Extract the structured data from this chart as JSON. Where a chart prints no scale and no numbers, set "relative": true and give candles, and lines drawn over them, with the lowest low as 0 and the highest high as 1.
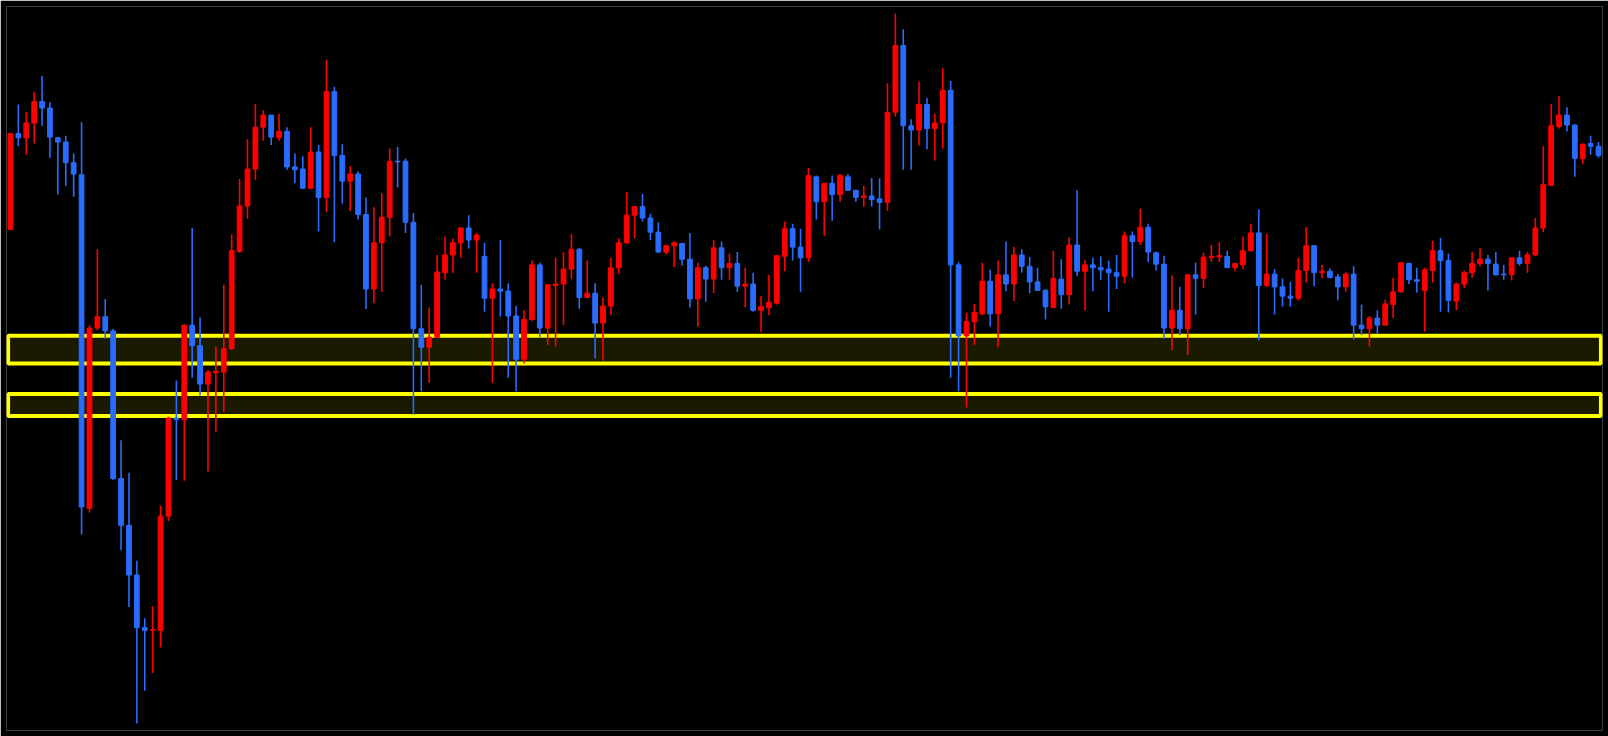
{
  "chart_data": {
    "type": "candlestick",
    "relative": true,
    "categories": [
      null,
      null,
      null,
      null,
      null,
      null,
      null,
      null,
      null,
      null,
      null,
      null,
      null,
      null,
      null,
      null,
      null,
      null,
      null,
      null,
      null,
      null,
      null,
      null,
      null,
      null,
      null,
      null,
      null,
      null,
      null,
      null,
      null,
      null,
      null,
      null,
      null,
      null,
      null,
      null,
      null,
      null,
      null,
      null,
      null,
      null,
      null,
      null,
      null,
      null,
      null,
      null,
      null,
      null,
      null,
      null,
      null,
      null,
      null,
      null,
      null,
      null,
      null,
      null,
      null,
      null,
      null,
      null,
      null,
      null,
      null,
      null,
      null,
      null,
      null,
      null,
      null,
      null,
      null,
      null,
      null,
      null,
      null,
      null,
      null,
      null,
      null,
      null,
      null,
      null,
      null,
      null,
      null,
      null,
      null,
      null,
      null,
      null,
      null,
      null,
      null,
      null,
      null,
      null,
      null,
      null,
      null,
      null,
      null,
      null,
      null,
      null,
      null,
      null,
      null,
      null,
      null,
      null,
      null,
      null,
      null,
      null,
      null,
      null,
      null,
      null,
      null,
      null,
      null,
      null,
      null,
      null,
      null,
      null,
      null,
      null,
      null,
      null,
      null,
      null,
      null,
      null,
      null,
      null,
      null,
      null,
      null,
      null,
      null,
      null,
      null,
      null,
      null,
      null,
      null,
      null,
      null,
      null,
      null,
      null,
      null,
      null,
      null,
      null,
      null,
      null,
      null,
      null,
      null,
      null,
      null,
      null,
      null,
      null,
      null,
      null,
      null,
      null,
      null,
      null,
      null,
      null,
      null,
      null,
      null,
      null,
      null,
      null,
      null,
      null,
      null,
      null,
      null,
      null,
      null,
      null,
      null,
      null,
      null,
      null,
      null,
      null
    ],
    "ohlc": [
      [
        0.696,
        0.831,
        0.696,
        0.831
      ],
      [
        0.831,
        0.872,
        0.813,
        0.825
      ],
      [
        0.825,
        0.861,
        0.801,
        0.846
      ],
      [
        0.846,
        0.89,
        0.817,
        0.876
      ],
      [
        0.876,
        0.912,
        0.842,
        0.867
      ],
      [
        0.867,
        0.875,
        0.797,
        0.826
      ],
      [
        0.825,
        0.826,
        0.745,
        0.819
      ],
      [
        0.819,
        0.828,
        0.757,
        0.79
      ],
      [
        0.79,
        0.803,
        0.742,
        0.774
      ],
      [
        0.773,
        0.847,
        0.266,
        0.305
      ],
      [
        0.303,
        0.561,
        0.297,
        0.557
      ],
      [
        0.557,
        0.668,
        0.554,
        0.573
      ],
      [
        0.573,
        0.598,
        0.542,
        0.553
      ],
      [
        0.553,
        0.556,
        0.343,
        0.345
      ],
      [
        0.345,
        0.399,
        0.244,
        0.279
      ],
      [
        0.279,
        0.353,
        0.164,
        0.209
      ],
      [
        0.209,
        0.229,
        0,
        0.135
      ],
      [
        0.135,
        0.148,
        0.046,
        0.131
      ],
      [
        0.131,
        0.165,
        0.071,
        0.132
      ],
      [
        0.131,
        0.307,
        0.107,
        0.292
      ],
      [
        0.292,
        0.432,
        0.285,
        0.43
      ],
      [
        0.43,
        0.483,
        0.343,
        0.428
      ],
      [
        0.428,
        0.562,
        0.342,
        0.561
      ],
      [
        0.561,
        0.698,
        0.487,
        0.532
      ],
      [
        0.532,
        0.572,
        0.462,
        0.478
      ],
      [
        0.478,
        0.498,
        0.355,
        0.495
      ],
      [
        0.494,
        0.531,
        0.411,
        0.496
      ],
      [
        0.495,
        0.618,
        0.439,
        0.528
      ],
      [
        0.528,
        0.689,
        0.526,
        0.666
      ],
      [
        0.665,
        0.767,
        0.663,
        0.729
      ],
      [
        0.729,
        0.823,
        0.711,
        0.781
      ],
      [
        0.781,
        0.873,
        0.766,
        0.84
      ],
      [
        0.84,
        0.864,
        0.821,
        0.857
      ],
      [
        0.857,
        0.857,
        0.815,
        0.826
      ],
      [
        0.825,
        0.859,
        0.821,
        0.834
      ],
      [
        0.834,
        0.84,
        0.78,
        0.784
      ],
      [
        0.784,
        0.803,
        0.761,
        0.78
      ],
      [
        0.781,
        0.799,
        0.753,
        0.754
      ],
      [
        0.754,
        0.84,
        0.753,
        0.805
      ],
      [
        0.805,
        0.815,
        0.693,
        0.741
      ],
      [
        0.741,
        0.935,
        0.72,
        0.89
      ],
      [
        0.89,
        0.897,
        0.678,
        0.8
      ],
      [
        0.8,
        0.816,
        0.732,
        0.764
      ],
      [
        0.764,
        0.785,
        0.722,
        0.774
      ],
      [
        0.774,
        0.778,
        0.71,
        0.717
      ],
      [
        0.717,
        0.741,
        0.584,
        0.612
      ],
      [
        0.612,
        0.727,
        0.592,
        0.677
      ],
      [
        0.677,
        0.747,
        0.608,
        0.713
      ],
      [
        0.713,
        0.81,
        0.686,
        0.792
      ],
      [
        0.792,
        0.812,
        0.755,
        0.791
      ],
      [
        0.792,
        0.796,
        0.691,
        0.706
      ],
      [
        0.706,
        0.719,
        0.435,
        0.556
      ],
      [
        0.556,
        0.618,
        0.468,
        0.53
      ],
      [
        0.53,
        0.586,
        0.48,
        0.544
      ],
      [
        0.544,
        0.66,
        0.543,
        0.636
      ],
      [
        0.635,
        0.686,
        0.625,
        0.66
      ],
      [
        0.66,
        0.683,
        0.635,
        0.677
      ],
      [
        0.677,
        0.699,
        0.656,
        0.698
      ],
      [
        0.698,
        0.716,
        0.669,
        0.681
      ],
      [
        0.681,
        0.691,
        0.635,
        0.688
      ],
      [
        0.658,
        0.677,
        0.58,
        0.599
      ],
      [
        0.599,
        0.62,
        0.48,
        0.612
      ],
      [
        0.612,
        0.681,
        0.573,
        0.609
      ],
      [
        0.609,
        0.62,
        0.487,
        0.574
      ],
      [
        0.574,
        0.588,
        0.468,
        0.513
      ],
      [
        0.513,
        0.582,
        0.507,
        0.569
      ],
      [
        0.569,
        0.652,
        0.567,
        0.646
      ],
      [
        0.646,
        0.649,
        0.544,
        0.557
      ],
      [
        0.557,
        0.618,
        0.533,
        0.618
      ],
      [
        0.617,
        0.656,
        0.531,
        0.619
      ],
      [
        0.619,
        0.664,
        0.561,
        0.64
      ],
      [
        0.64,
        0.689,
        0.626,
        0.668
      ],
      [
        0.668,
        0.67,
        0.584,
        0.6
      ],
      [
        0.6,
        0.652,
        0.599,
        0.606
      ],
      [
        0.606,
        0.62,
        0.514,
        0.564
      ],
      [
        0.564,
        0.6,
        0.511,
        0.588
      ],
      [
        0.588,
        0.656,
        0.575,
        0.642
      ],
      [
        0.642,
        0.683,
        0.633,
        0.677
      ],
      [
        0.677,
        0.749,
        0.676,
        0.716
      ],
      [
        0.716,
        0.728,
        0.683,
        0.728
      ],
      [
        0.728,
        0.746,
        0.707,
        0.712
      ],
      [
        0.712,
        0.718,
        0.681,
        0.692
      ],
      [
        0.692,
        0.706,
        0.663,
        0.664
      ],
      [
        0.664,
        0.674,
        0.661,
        0.673
      ],
      [
        0.673,
        0.679,
        0.643,
        0.677
      ],
      [
        0.676,
        0.677,
        0.645,
        0.654
      ],
      [
        0.654,
        0.691,
        0.586,
        0.598
      ],
      [
        0.598,
        0.649,
        0.559,
        0.642
      ],
      [
        0.642,
        0.645,
        0.594,
        0.626
      ],
      [
        0.626,
        0.681,
        0.606,
        0.67
      ],
      [
        0.67,
        0.679,
        0.625,
        0.642
      ],
      [
        0.642,
        0.662,
        0.625,
        0.648
      ],
      [
        0.648,
        0.664,
        0.608,
        0.616
      ],
      [
        0.616,
        0.642,
        0.586,
        0.619
      ],
      [
        0.619,
        0.635,
        0.58,
        0.582
      ],
      [
        0.582,
        0.602,
        0.551,
        0.587
      ],
      [
        0.586,
        0.632,
        0.575,
        0.593
      ],
      [
        0.592,
        0.659,
        0.59,
        0.659
      ],
      [
        0.658,
        0.707,
        0.637,
        0.697
      ],
      [
        0.697,
        0.704,
        0.652,
        0.671
      ],
      [
        0.671,
        0.697,
        0.608,
        0.656
      ],
      [
        0.656,
        0.783,
        0.65,
        0.772
      ],
      [
        0.77,
        0.772,
        0.71,
        0.735
      ],
      [
        0.735,
        0.761,
        0.687,
        0.761
      ],
      [
        0.761,
        0.772,
        0.708,
        0.745
      ],
      [
        0.745,
        0.774,
        0.735,
        0.772
      ],
      [
        0.77,
        0.774,
        0.751,
        0.751
      ],
      [
        0.751,
        0.752,
        0.735,
        0.741
      ],
      [
        0.741,
        0.757,
        0.728,
        0.743
      ],
      [
        0.743,
        0.768,
        0.728,
        0.738
      ],
      [
        0.739,
        0.768,
        0.696,
        0.734
      ],
      [
        0.734,
        0.902,
        0.722,
        0.861
      ],
      [
        0.861,
        1,
        0.855,
        0.955
      ],
      [
        0.955,
        0.978,
        0.78,
        0.842
      ],
      [
        0.842,
        0.851,
        0.78,
        0.836
      ],
      [
        0.836,
        0.904,
        0.814,
        0.872
      ],
      [
        0.872,
        0.881,
        0.809,
        0.838
      ],
      [
        0.838,
        0.859,
        0.793,
        0.846
      ],
      [
        0.846,
        0.923,
        0.81,
        0.892
      ],
      [
        0.892,
        0.905,
        0.487,
        0.646
      ],
      [
        0.646,
        0.65,
        0.468,
        0.546
      ],
      [
        0.546,
        0.578,
        0.445,
        0.566
      ],
      [
        0.566,
        0.591,
        0.533,
        0.579
      ],
      [
        0.577,
        0.649,
        0.575,
        0.623
      ],
      [
        0.623,
        0.639,
        0.559,
        0.577
      ],
      [
        0.577,
        0.652,
        0.53,
        0.632
      ],
      [
        0.632,
        0.679,
        0.609,
        0.619
      ],
      [
        0.619,
        0.671,
        0.595,
        0.66
      ],
      [
        0.66,
        0.668,
        0.635,
        0.644
      ],
      [
        0.644,
        0.657,
        0.606,
        0.622
      ],
      [
        0.622,
        0.642,
        0.61,
        0.61
      ],
      [
        0.61,
        0.612,
        0.569,
        0.587
      ],
      [
        0.586,
        0.666,
        0.585,
        0.627
      ],
      [
        0.626,
        0.654,
        0.584,
        0.604
      ],
      [
        0.604,
        0.685,
        0.59,
        0.674
      ],
      [
        0.674,
        0.751,
        0.63,
        0.637
      ],
      [
        0.637,
        0.653,
        0.582,
        0.646
      ],
      [
        0.646,
        0.656,
        0.609,
        0.642
      ],
      [
        0.642,
        0.658,
        0.625,
        0.639
      ],
      [
        0.64,
        0.652,
        0.58,
        0.635
      ],
      [
        0.635,
        0.66,
        0.612,
        0.63
      ],
      [
        0.63,
        0.693,
        0.62,
        0.687
      ],
      [
        0.687,
        0.693,
        0.628,
        0.679
      ],
      [
        0.679,
        0.725,
        0.674,
        0.699
      ],
      [
        0.699,
        0.704,
        0.65,
        0.664
      ],
      [
        0.663,
        0.665,
        0.638,
        0.647
      ],
      [
        0.647,
        0.659,
        0.542,
        0.557
      ],
      [
        0.557,
        0.631,
        0.526,
        0.582
      ],
      [
        0.582,
        0.615,
        0.547,
        0.556
      ],
      [
        0.556,
        0.632,
        0.519,
        0.632
      ],
      [
        0.632,
        0.649,
        0.576,
        0.627
      ],
      [
        0.627,
        0.663,
        0.613,
        0.657
      ],
      [
        0.656,
        0.674,
        0.65,
        0.658
      ],
      [
        0.657,
        0.678,
        0.65,
        0.659
      ],
      [
        0.658,
        0.666,
        0.642,
        0.642
      ],
      [
        0.642,
        0.648,
        0.637,
        0.648
      ],
      [
        0.646,
        0.686,
        0.64,
        0.666
      ],
      [
        0.666,
        0.704,
        0.665,
        0.691
      ],
      [
        0.691,
        0.724,
        0.54,
        0.617
      ],
      [
        0.617,
        0.69,
        0.615,
        0.633
      ],
      [
        0.633,
        0.64,
        0.576,
        0.615
      ],
      [
        0.615,
        0.627,
        0.587,
        0.602
      ],
      [
        0.602,
        0.622,
        0.587,
        0.599
      ],
      [
        0.599,
        0.656,
        0.596,
        0.638
      ],
      [
        0.638,
        0.699,
        0.621,
        0.673
      ],
      [
        0.673,
        0.673,
        0.616,
        0.635
      ],
      [
        0.635,
        0.646,
        0.627,
        0.637
      ],
      [
        0.637,
        0.641,
        0.627,
        0.628
      ],
      [
        0.629,
        0.633,
        0.596,
        0.615
      ],
      [
        0.615,
        0.636,
        0.608,
        0.633
      ],
      [
        0.633,
        0.644,
        0.541,
        0.561
      ],
      [
        0.561,
        0.59,
        0.547,
        0.556
      ],
      [
        0.556,
        0.574,
        0.531,
        0.571
      ],
      [
        0.571,
        0.582,
        0.549,
        0.561
      ],
      [
        0.561,
        0.597,
        0.561,
        0.591
      ],
      [
        0.59,
        0.628,
        0.571,
        0.608
      ],
      [
        0.608,
        0.649,
        0.607,
        0.649
      ],
      [
        0.648,
        0.649,
        0.619,
        0.625
      ],
      [
        0.625,
        0.642,
        0.607,
        0.623
      ],
      [
        0.61,
        0.642,
        0.552,
        0.639
      ],
      [
        0.638,
        0.68,
        0.621,
        0.666
      ],
      [
        0.666,
        0.684,
        0.58,
        0.652
      ],
      [
        0.652,
        0.662,
        0.579,
        0.596
      ],
      [
        0.595,
        0.621,
        0.582,
        0.619
      ],
      [
        0.619,
        0.638,
        0.613,
        0.635
      ],
      [
        0.635,
        0.664,
        0.628,
        0.648
      ],
      [
        0.648,
        0.67,
        0.644,
        0.654
      ],
      [
        0.654,
        0.66,
        0.61,
        0.648
      ],
      [
        0.647,
        0.664,
        0.631,
        0.632
      ],
      [
        0.633,
        0.646,
        0.625,
        0.632
      ],
      [
        0.632,
        0.656,
        0.624,
        0.656
      ],
      [
        0.656,
        0.666,
        0.645,
        0.648
      ],
      [
        0.648,
        0.664,
        0.635,
        0.66
      ],
      [
        0.66,
        0.712,
        0.658,
        0.698
      ],
      [
        0.698,
        0.813,
        0.692,
        0.759
      ],
      [
        0.758,
        0.873,
        0.757,
        0.842
      ],
      [
        0.841,
        0.884,
        0.838,
        0.857
      ],
      [
        0.857,
        0.868,
        0.834,
        0.843
      ],
      [
        0.843,
        0.844,
        0.77,
        0.796
      ],
      [
        0.796,
        0.817,
        0.788,
        0.816
      ],
      [
        0.817,
        0.828,
        0.801,
        0.813
      ],
      [
        0.813,
        0.819,
        0.797,
        0.8
      ]
    ],
    "colors": [
      "#ff0000",
      "#2a6cff",
      "#ff0000",
      "#ff0000",
      "#2a6cff",
      "#2a6cff",
      "#2a6cff",
      "#2a6cff",
      "#2a6cff",
      "#2a6cff",
      "#ff0000",
      "#ff0000",
      "#2a6cff",
      "#2a6cff",
      "#2a6cff",
      "#2a6cff",
      "#2a6cff",
      "#2a6cff",
      "#ff0000",
      "#ff0000",
      "#ff0000",
      "#2a6cff",
      "#ff0000",
      "#2a6cff",
      "#2a6cff",
      "#ff0000",
      "#ff0000",
      "#ff0000",
      "#ff0000",
      "#ff0000",
      "#ff0000",
      "#ff0000",
      "#ff0000",
      "#2a6cff",
      "#ff0000",
      "#2a6cff",
      "#2a6cff",
      "#2a6cff",
      "#ff0000",
      "#2a6cff",
      "#ff0000",
      "#2a6cff",
      "#2a6cff",
      "#ff0000",
      "#2a6cff",
      "#2a6cff",
      "#ff0000",
      "#ff0000",
      "#ff0000",
      "#2a6cff",
      "#2a6cff",
      "#2a6cff",
      "#2a6cff",
      "#ff0000",
      "#ff0000",
      "#ff0000",
      "#ff0000",
      "#ff0000",
      "#2a6cff",
      "#ff0000",
      "#2a6cff",
      "#ff0000",
      "#2a6cff",
      "#2a6cff",
      "#2a6cff",
      "#ff0000",
      "#ff0000",
      "#2a6cff",
      "#ff0000",
      "#ff0000",
      "#ff0000",
      "#ff0000",
      "#2a6cff",
      "#ff0000",
      "#2a6cff",
      "#ff0000",
      "#ff0000",
      "#ff0000",
      "#ff0000",
      "#ff0000",
      "#2a6cff",
      "#2a6cff",
      "#2a6cff",
      "#ff0000",
      "#ff0000",
      "#2a6cff",
      "#2a6cff",
      "#ff0000",
      "#2a6cff",
      "#ff0000",
      "#2a6cff",
      "#ff0000",
      "#2a6cff",
      "#ff0000",
      "#2a6cff",
      "#ff0000",
      "#ff0000",
      "#ff0000",
      "#ff0000",
      "#2a6cff",
      "#2a6cff",
      "#ff0000",
      "#2a6cff",
      "#ff0000",
      "#2a6cff",
      "#ff0000",
      "#2a6cff",
      "#2a6cff",
      "#ff0000",
      "#2a6cff",
      "#2a6cff",
      "#ff0000",
      "#ff0000",
      "#2a6cff",
      "#2a6cff",
      "#ff0000",
      "#2a6cff",
      "#ff0000",
      "#ff0000",
      "#2a6cff",
      "#2a6cff",
      "#ff0000",
      "#ff0000",
      "#ff0000",
      "#2a6cff",
      "#ff0000",
      "#2a6cff",
      "#ff0000",
      "#2a6cff",
      "#2a6cff",
      "#2a6cff",
      "#2a6cff",
      "#ff0000",
      "#2a6cff",
      "#ff0000",
      "#2a6cff",
      "#ff0000",
      "#2a6cff",
      "#2a6cff",
      "#2a6cff",
      "#2a6cff",
      "#ff0000",
      "#2a6cff",
      "#ff0000",
      "#2a6cff",
      "#2a6cff",
      "#2a6cff",
      "#ff0000",
      "#2a6cff",
      "#ff0000",
      "#2a6cff",
      "#ff0000",
      "#ff0000",
      "#ff0000",
      "#2a6cff",
      "#ff0000",
      "#ff0000",
      "#ff0000",
      "#2a6cff",
      "#ff0000",
      "#2a6cff",
      "#2a6cff",
      "#2a6cff",
      "#ff0000",
      "#ff0000",
      "#2a6cff",
      "#ff0000",
      "#2a6cff",
      "#2a6cff",
      "#ff0000",
      "#2a6cff",
      "#2a6cff",
      "#ff0000",
      "#2a6cff",
      "#ff0000",
      "#ff0000",
      "#ff0000",
      "#2a6cff",
      "#2a6cff",
      "#ff0000",
      "#ff0000",
      "#2a6cff",
      "#2a6cff",
      "#ff0000",
      "#ff0000",
      "#ff0000",
      "#ff0000",
      "#2a6cff",
      "#2a6cff",
      "#2a6cff",
      "#ff0000",
      "#2a6cff",
      "#ff0000",
      "#ff0000",
      "#ff0000",
      "#ff0000",
      "#ff0000",
      "#2a6cff",
      "#2a6cff",
      "#ff0000",
      "#2a6cff",
      "#2a6cff"
    ],
    "bands": [
      {
        "axis": "y",
        "from": 0.507,
        "to": 0.546,
        "color": "#ffff00"
      },
      {
        "axis": "y",
        "from": 0.433,
        "to": 0.464,
        "color": "#ffff00"
      }
    ]
  }
}
